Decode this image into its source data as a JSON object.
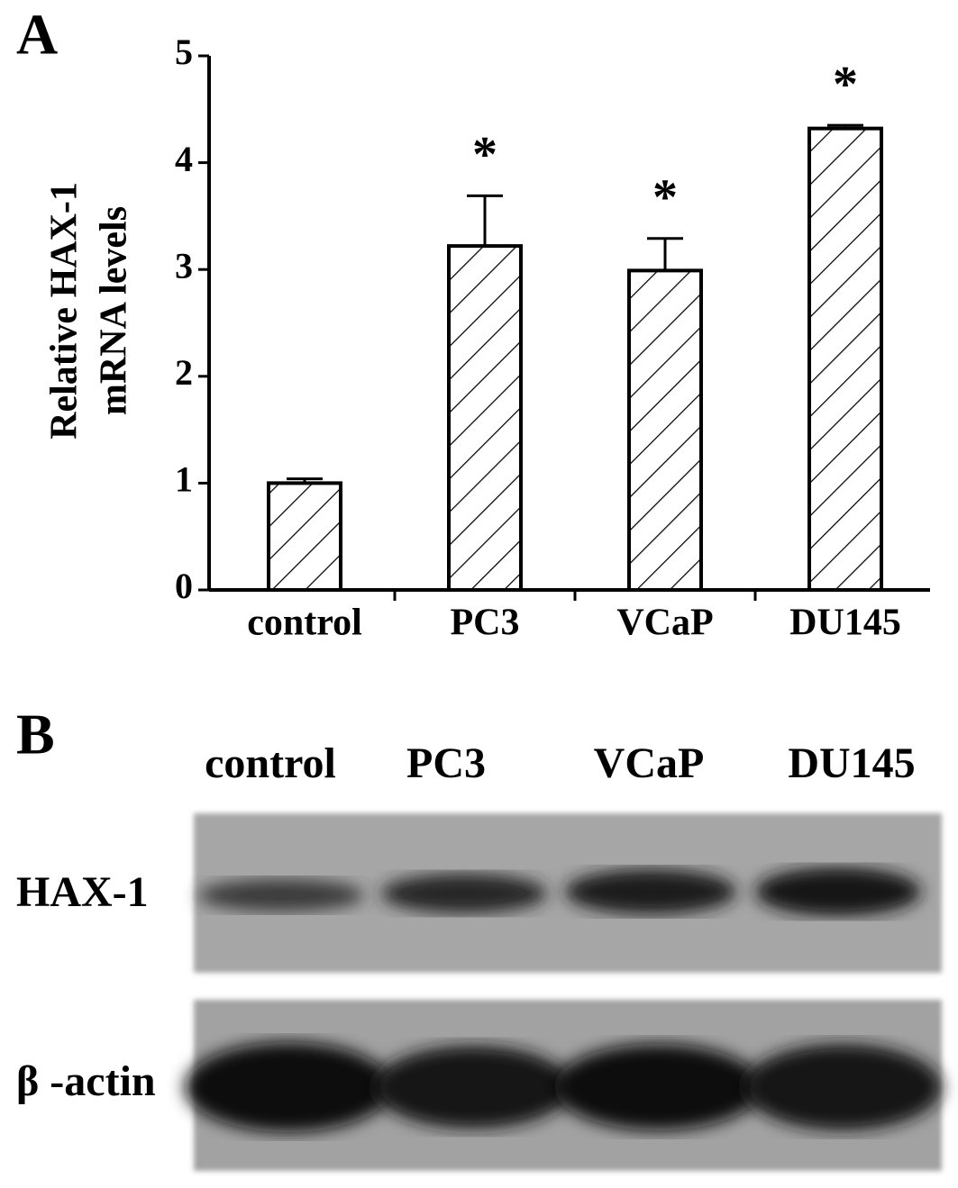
{
  "chart_data": {
    "type": "bar",
    "panel_label": "A",
    "ylabel_lines": [
      "Relative HAX-1",
      "mRNA levels"
    ],
    "categories": [
      "control",
      "PC3",
      "VCaP",
      "DU145"
    ],
    "values": [
      1.0,
      3.22,
      2.99,
      4.32
    ],
    "errors": [
      0.04,
      0.47,
      0.3,
      0.03
    ],
    "annotations": [
      null,
      "*",
      "*",
      "*"
    ],
    "color": "#000000",
    "fill": "#ffffff",
    "hatch": "/",
    "ylim": [
      0,
      5
    ],
    "yticks": [
      0,
      1,
      2,
      3,
      4,
      5
    ],
    "grid": false
  },
  "blot": {
    "panel_label": "B",
    "lanes": [
      "control",
      "PC3",
      "VCaP",
      "DU145"
    ],
    "rows": [
      {
        "label": "HAX-1"
      },
      {
        "label": "β -actin"
      }
    ]
  }
}
